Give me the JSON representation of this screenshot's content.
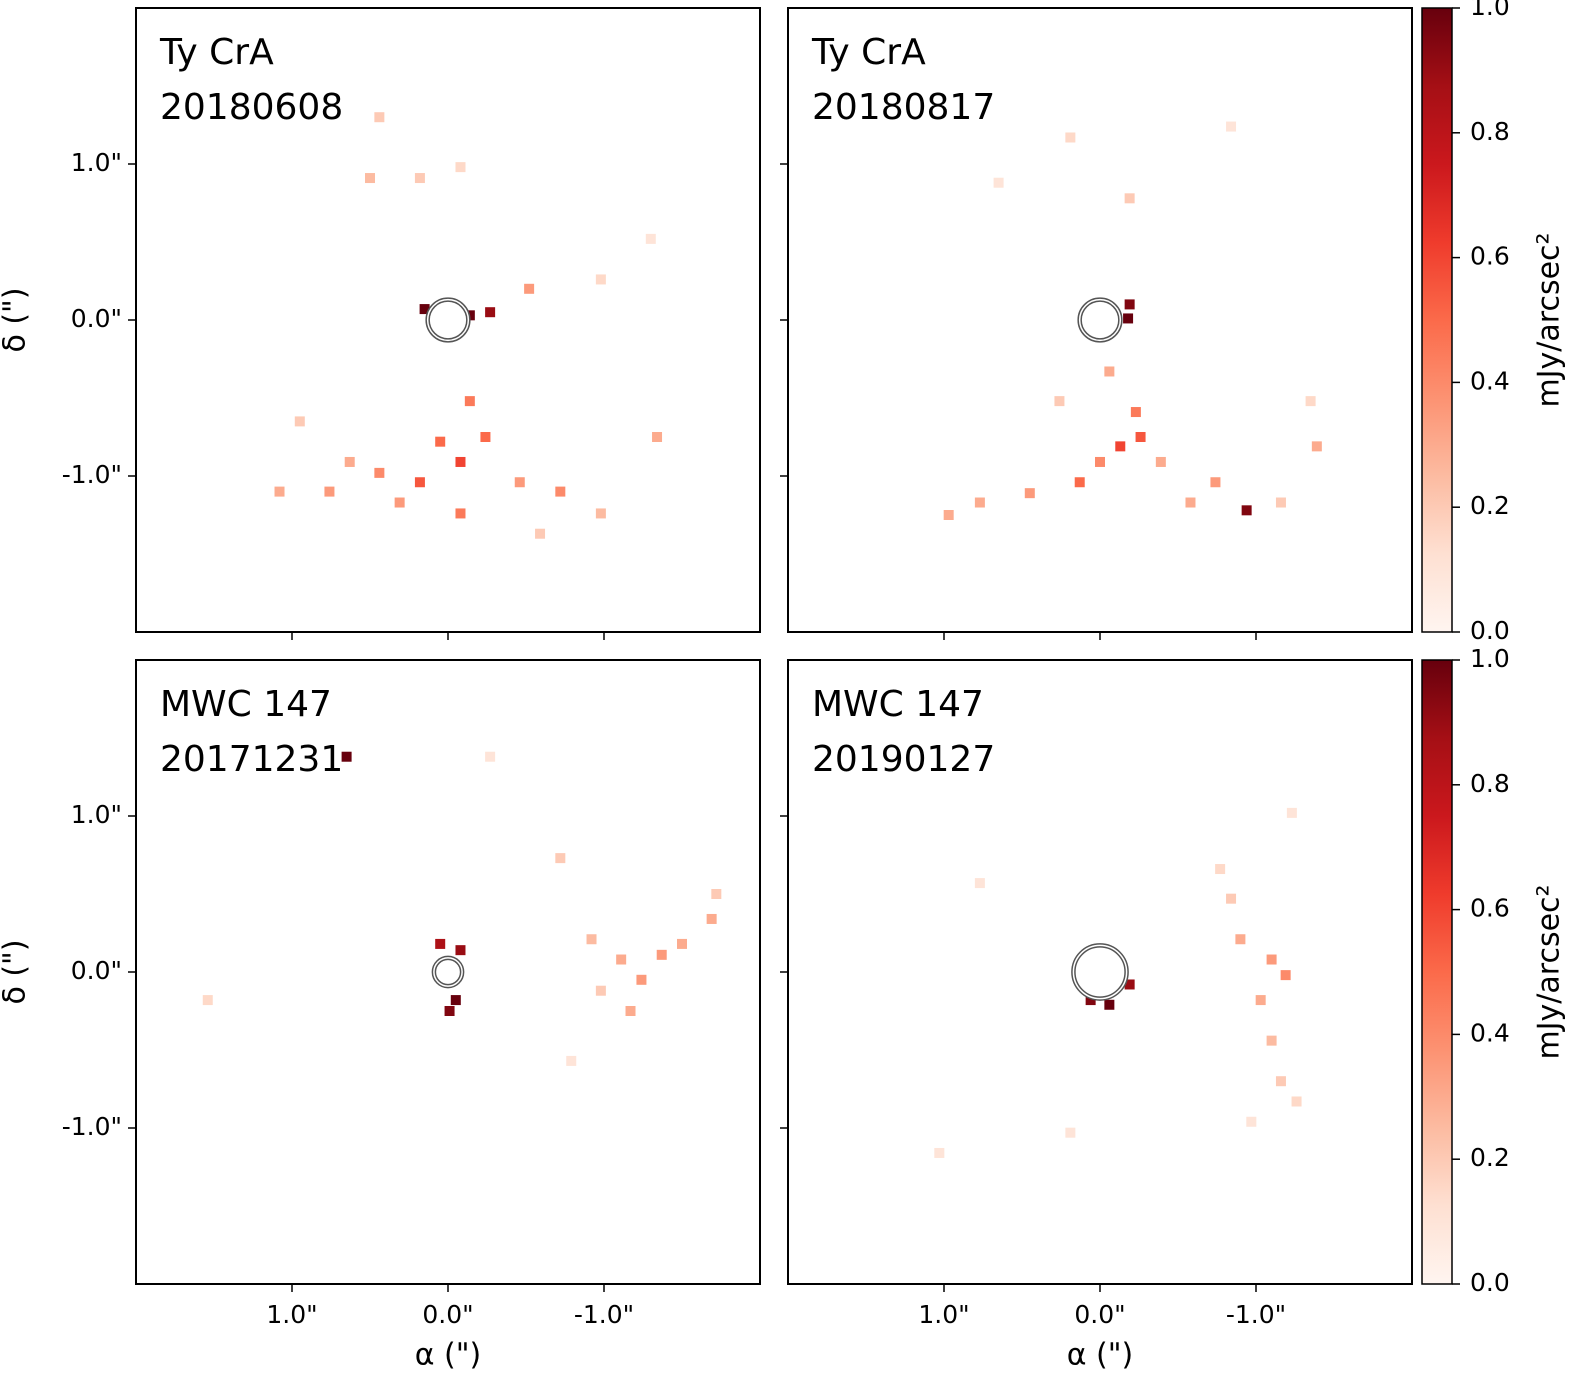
{
  "colormap": [
    "#fff5f0",
    "#fee0d2",
    "#fcbba1",
    "#fc9272",
    "#fb6a4a",
    "#ef3b2c",
    "#cb181d",
    "#a50f15",
    "#67000d"
  ],
  "chart_data": [
    {
      "type": "heatmap",
      "title": "Ty CrA",
      "subtitle": "20180608",
      "xlim": [
        2,
        -2
      ],
      "ylim": [
        -2,
        2
      ],
      "xticks": [
        1,
        0,
        -1
      ],
      "yticks": [
        {
          "value": 1,
          "label": "1.0\""
        },
        {
          "value": 0,
          "label": "0.0\""
        },
        {
          "value": -1,
          "label": "-1.0\""
        }
      ],
      "ylabel": "δ (\")",
      "mask_radius": 0.14,
      "x": [
        0.15,
        -0.14,
        -0.27,
        -0.08,
        0.18,
        -0.24,
        -0.14,
        0.44,
        0.76,
        1.08,
        -0.46,
        -0.72,
        -0.98,
        -1.34,
        -0.08,
        0.31,
        -0.52,
        0.44,
        0.18,
        0.5,
        -0.08,
        -0.98,
        -1.3,
        0.95,
        0.05,
        0.63,
        -0.59
      ],
      "y": [
        0.07,
        0.03,
        0.05,
        -0.91,
        -1.04,
        -0.75,
        -0.52,
        -0.98,
        -1.1,
        -1.1,
        -1.04,
        -1.1,
        -1.24,
        -0.75,
        -1.24,
        -1.17,
        0.2,
        1.3,
        0.91,
        0.91,
        0.98,
        0.26,
        0.52,
        -0.65,
        -0.78,
        -0.91,
        -1.37
      ],
      "values": [
        1.0,
        1.0,
        0.9,
        0.6,
        0.55,
        0.5,
        0.45,
        0.4,
        0.35,
        0.3,
        0.35,
        0.4,
        0.25,
        0.3,
        0.45,
        0.35,
        0.35,
        0.2,
        0.2,
        0.25,
        0.15,
        0.15,
        0.1,
        0.2,
        0.5,
        0.3,
        0.2
      ]
    },
    {
      "type": "heatmap",
      "title": "Ty CrA",
      "subtitle": "20180817",
      "xlim": [
        2,
        -2
      ],
      "ylim": [
        -2,
        2
      ],
      "xticks": [
        1,
        0,
        -1
      ],
      "yticks": [
        1,
        0,
        -1
      ],
      "mask_radius": 0.14,
      "x": [
        -0.18,
        -0.19,
        -0.13,
        -0.26,
        -0.23,
        0.13,
        0.45,
        0.77,
        0.97,
        -0.58,
        -0.74,
        -0.94,
        -1.16,
        -1.39,
        -1.35,
        -0.06,
        0.26,
        0.19,
        -0.19,
        0.65,
        -0.84,
        0,
        -0.39
      ],
      "y": [
        0.01,
        0.1,
        -0.81,
        -0.75,
        -0.59,
        -1.04,
        -1.11,
        -1.17,
        -1.25,
        -1.17,
        -1.04,
        -1.22,
        -1.17,
        -0.81,
        -0.52,
        -0.33,
        -0.52,
        1.17,
        0.78,
        0.88,
        1.24,
        -0.91,
        -0.91
      ],
      "values": [
        1.0,
        0.95,
        0.6,
        0.55,
        0.45,
        0.5,
        0.35,
        0.3,
        0.3,
        0.3,
        0.35,
        0.95,
        0.2,
        0.3,
        0.15,
        0.3,
        0.2,
        0.15,
        0.2,
        0.1,
        0.1,
        0.4,
        0.3
      ],
      "colorbar": {
        "label": "mJy/arcsec²",
        "lim": [
          0,
          1
        ],
        "ticks": [
          {
            "value": 0,
            "label": "0.0"
          },
          0.2,
          0.4,
          0.6,
          0.8,
          {
            "value": 1,
            "label": "1.0"
          }
        ]
      }
    },
    {
      "type": "heatmap",
      "title": "MWC 147",
      "subtitle": "20171231",
      "xlim": [
        2,
        -2
      ],
      "ylim": [
        -2,
        2
      ],
      "xticks": [
        {
          "value": 1,
          "label": "1.0\""
        },
        {
          "value": 0,
          "label": "0.0\""
        },
        {
          "value": -1,
          "label": "-1.0\""
        }
      ],
      "yticks": [
        {
          "value": 1,
          "label": "1.0\""
        },
        {
          "value": 0,
          "label": "0.0\""
        },
        {
          "value": -1,
          "label": "-1.0\""
        }
      ],
      "xlabel": "α (\")",
      "ylabel": "δ (\")",
      "mask_radius": 0.1,
      "x": [
        0.65,
        -0.05,
        -0.01,
        -0.08,
        0.05,
        -1.11,
        -1.37,
        -1.5,
        -1.69,
        -1.72,
        -0.98,
        -1.17,
        -0.72,
        -0.92,
        -0.27,
        1.54,
        -0.79,
        -1.24
      ],
      "y": [
        1.38,
        -0.18,
        -0.25,
        0.14,
        0.18,
        0.08,
        0.11,
        0.18,
        0.34,
        0.5,
        -0.12,
        -0.25,
        0.73,
        0.21,
        1.38,
        -0.18,
        -0.57,
        -0.05
      ],
      "values": [
        1.0,
        1.0,
        0.95,
        0.9,
        0.85,
        0.3,
        0.35,
        0.3,
        0.3,
        0.2,
        0.2,
        0.3,
        0.2,
        0.25,
        0.1,
        0.15,
        0.1,
        0.35
      ]
    },
    {
      "type": "heatmap",
      "title": "MWC 147",
      "subtitle": "20190127",
      "xlim": [
        2,
        -2
      ],
      "ylim": [
        -2,
        2
      ],
      "xticks": [
        {
          "value": 1,
          "label": "1.0\""
        },
        {
          "value": 0,
          "label": "0.0\""
        },
        {
          "value": -1,
          "label": "-1.0\""
        }
      ],
      "yticks": [
        1,
        0,
        -1
      ],
      "xlabel": "α (\")",
      "mask_radius": 0.18,
      "x": [
        -0.06,
        0.06,
        -0.19,
        -0.9,
        -1.1,
        -1.19,
        -1.03,
        -1.1,
        -1.16,
        -1.26,
        -0.84,
        -0.77,
        -0.97,
        0.77,
        0.19,
        1.03,
        -1.23
      ],
      "y": [
        -0.21,
        -0.18,
        -0.08,
        0.21,
        0.08,
        -0.02,
        -0.18,
        -0.44,
        -0.7,
        -0.83,
        0.47,
        0.66,
        -0.96,
        0.57,
        -1.03,
        -1.16,
        1.02
      ],
      "values": [
        1.0,
        0.95,
        0.9,
        0.3,
        0.35,
        0.4,
        0.3,
        0.25,
        0.2,
        0.15,
        0.2,
        0.15,
        0.1,
        0.1,
        0.1,
        0.1,
        0.1
      ],
      "colorbar": {
        "label": "mJy/arcsec²",
        "lim": [
          0,
          1
        ],
        "ticks": [
          {
            "value": 0,
            "label": "0.0"
          },
          0.2,
          0.4,
          0.6,
          0.8,
          {
            "value": 1,
            "label": "1.0"
          }
        ]
      }
    }
  ]
}
